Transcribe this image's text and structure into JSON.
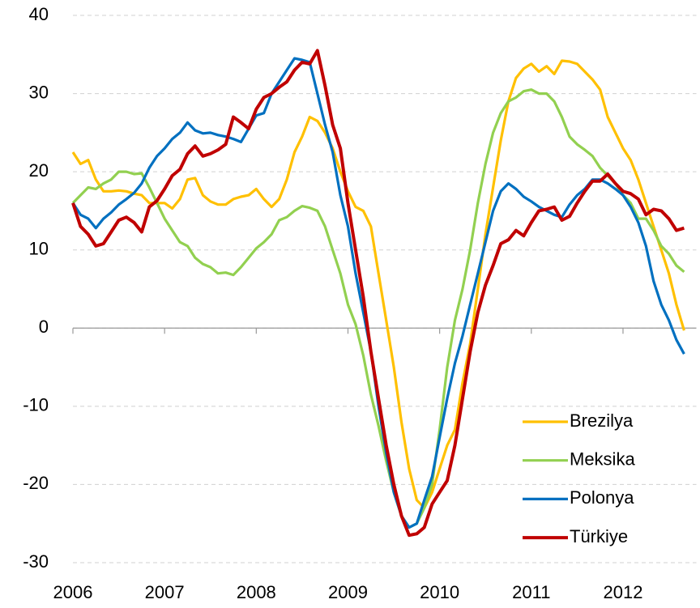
{
  "chart_data": {
    "type": "line",
    "x": [
      2006,
      2006.083,
      2006.167,
      2006.25,
      2006.333,
      2006.417,
      2006.5,
      2006.583,
      2006.667,
      2006.75,
      2006.833,
      2006.917,
      2007,
      2007.083,
      2007.167,
      2007.25,
      2007.333,
      2007.417,
      2007.5,
      2007.583,
      2007.667,
      2007.75,
      2007.833,
      2007.917,
      2008,
      2008.083,
      2008.167,
      2008.25,
      2008.333,
      2008.417,
      2008.5,
      2008.583,
      2008.667,
      2008.75,
      2008.833,
      2008.917,
      2009,
      2009.083,
      2009.167,
      2009.25,
      2009.333,
      2009.417,
      2009.5,
      2009.583,
      2009.667,
      2009.75,
      2009.833,
      2009.917,
      2010,
      2010.083,
      2010.167,
      2010.25,
      2010.333,
      2010.417,
      2010.5,
      2010.583,
      2010.667,
      2010.75,
      2010.833,
      2010.917,
      2011,
      2011.083,
      2011.167,
      2011.25,
      2011.333,
      2011.417,
      2011.5,
      2011.583,
      2011.667,
      2011.75,
      2011.833,
      2011.917,
      2012,
      2012.083,
      2012.167,
      2012.25,
      2012.333,
      2012.417,
      2012.5,
      2012.583,
      2012.667
    ],
    "series": [
      {
        "name": "Brezilya",
        "color": "#FFC000",
        "values": [
          22.5,
          21,
          21.5,
          19,
          17.5,
          17.5,
          17.6,
          17.5,
          17.2,
          17,
          16,
          16,
          16,
          15.3,
          16.5,
          19,
          19.2,
          17,
          16.2,
          15.8,
          15.8,
          16.5,
          16.8,
          17,
          17.8,
          16.5,
          15.5,
          16.5,
          19,
          22.5,
          24.5,
          27,
          26.5,
          25,
          23,
          20,
          17.5,
          15.5,
          15,
          13,
          7,
          1,
          -5,
          -12,
          -18,
          -22,
          -23,
          -21,
          -18,
          -15,
          -13,
          -7,
          -2,
          5,
          12,
          18,
          24,
          29,
          32,
          33.2,
          33.8,
          32.8,
          33.5,
          32.5,
          34.2,
          34.1,
          33.8,
          32.8,
          31.8,
          30.5,
          27,
          25,
          23,
          21.5,
          19,
          16,
          13,
          10,
          7,
          3,
          -0.3
        ]
      },
      {
        "name": "Meksika",
        "color": "#92D050",
        "values": [
          16,
          17,
          18,
          17.8,
          18.5,
          19,
          20,
          20,
          19.7,
          19.8,
          18,
          16,
          14,
          12.5,
          11,
          10.5,
          9,
          8.2,
          7.8,
          7,
          7.1,
          6.8,
          7.8,
          9,
          10.2,
          11,
          12,
          13.8,
          14.2,
          15,
          15.6,
          15.4,
          15,
          13,
          10,
          7,
          3,
          0.5,
          -3.5,
          -8.5,
          -12.5,
          -17,
          -21,
          -24,
          -25.5,
          -25,
          -23,
          -20,
          -13,
          -5,
          1,
          5,
          10,
          16,
          21,
          25,
          27.5,
          29,
          29.5,
          30.3,
          30.5,
          30,
          30,
          29,
          27,
          24.5,
          23.5,
          22.8,
          22,
          20.5,
          19.5,
          18.5,
          17,
          16,
          14,
          14,
          12.5,
          10.5,
          9.5,
          8,
          7.2
        ]
      },
      {
        "name": "Polonya",
        "color": "#0070C0",
        "values": [
          16,
          14.5,
          14,
          12.8,
          14,
          14.8,
          15.8,
          16.5,
          17.3,
          18.5,
          20.5,
          22,
          23,
          24.2,
          25,
          26.3,
          25.3,
          24.9,
          25,
          24.7,
          24.5,
          24.2,
          23.8,
          25.5,
          27.2,
          27.5,
          30,
          31.5,
          33,
          34.5,
          34.3,
          34,
          30,
          26,
          22.5,
          17,
          13,
          7,
          2,
          -3,
          -10,
          -16,
          -21,
          -24,
          -25.5,
          -25,
          -22,
          -19,
          -14,
          -9,
          -4.5,
          -1,
          3,
          7,
          11,
          15,
          17.5,
          18.5,
          17.8,
          16.8,
          16.2,
          15.5,
          15,
          14.5,
          14.2,
          15.8,
          17,
          17.8,
          19,
          19,
          18.5,
          17.8,
          17,
          15.5,
          13.5,
          10.5,
          6,
          3,
          1,
          -1.5,
          -3.3
        ]
      },
      {
        "name": "Türkiye",
        "color": "#C00000",
        "values": [
          16,
          13,
          12,
          10.5,
          10.8,
          12.3,
          13.8,
          14.2,
          13.5,
          12.3,
          15.5,
          16.3,
          17.8,
          19.5,
          20.3,
          22.3,
          23.3,
          22,
          22.3,
          22.8,
          23.5,
          27,
          26.3,
          25.5,
          28,
          29.5,
          30,
          30.8,
          31.5,
          33,
          34,
          33.8,
          35.5,
          31,
          26,
          23,
          16,
          10,
          4,
          -3,
          -9,
          -15,
          -20,
          -24,
          -26.5,
          -26.3,
          -25.5,
          -22.5,
          -21,
          -19.5,
          -15,
          -9,
          -3,
          2,
          5.5,
          8,
          10.8,
          11.3,
          12.5,
          11.8,
          13.5,
          15,
          15.2,
          15.5,
          13.8,
          14.3,
          16,
          17.5,
          18.8,
          18.8,
          19.7,
          18.5,
          17.5,
          17.2,
          16.5,
          14.5,
          15.2,
          15,
          14,
          12.5,
          12.8
        ]
      }
    ],
    "xlim": [
      2006,
      2012.8
    ],
    "xticks": [
      2006,
      2007,
      2008,
      2009,
      2010,
      2011,
      2012
    ],
    "ylim": [
      -30,
      40
    ],
    "yticks": [
      -30,
      -20,
      -10,
      0,
      10,
      20,
      30,
      40
    ],
    "grid": true,
    "legend": "lower right"
  }
}
